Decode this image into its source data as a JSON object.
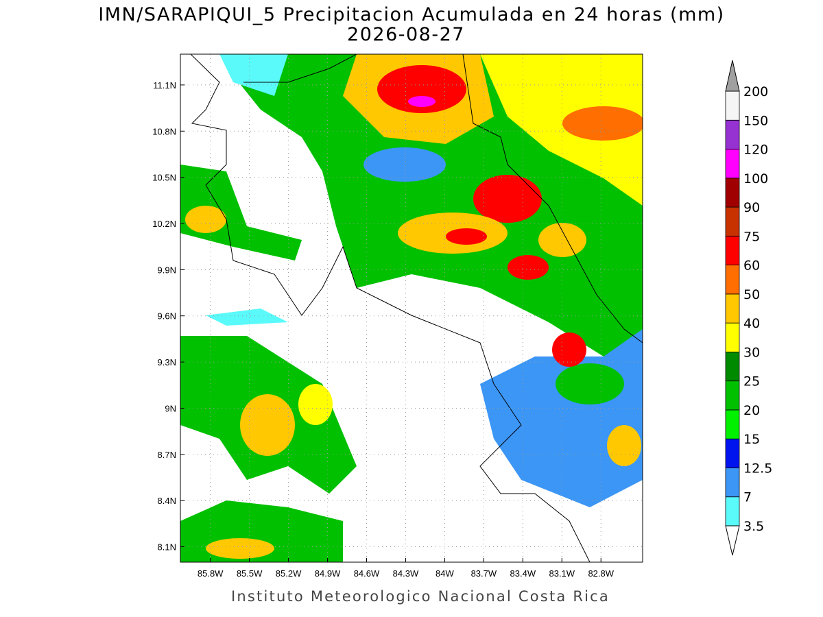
{
  "chart_data": {
    "type": "map",
    "title": "IMN/SARAPIQUI_5 Precipitacion Acumulada en 24 horas (mm)",
    "subtitle": "2026-08-27",
    "footer": "Instituto Meteorologico Nacional Costa Rica",
    "ylim": [
      8.0,
      11.3
    ],
    "xlim": [
      86.03,
      82.48
    ],
    "grid": true,
    "yticks": [
      {
        "value": 11.1,
        "label": "11.1N"
      },
      {
        "value": 10.8,
        "label": "10.8N"
      },
      {
        "value": 10.5,
        "label": "10.5N"
      },
      {
        "value": 10.2,
        "label": "10.2N"
      },
      {
        "value": 9.9,
        "label": "9.9N"
      },
      {
        "value": 9.6,
        "label": "9.6N"
      },
      {
        "value": 9.3,
        "label": "9.3N"
      },
      {
        "value": 9,
        "label": "9N"
      },
      {
        "value": 8.7,
        "label": "8.7N"
      },
      {
        "value": 8.4,
        "label": "8.4N"
      },
      {
        "value": 8.1,
        "label": "8.1N"
      }
    ],
    "xticks": [
      {
        "value": 85.8,
        "label": "85.8W"
      },
      {
        "value": 85.5,
        "label": "85.5W"
      },
      {
        "value": 85.2,
        "label": "85.2W"
      },
      {
        "value": 84.9,
        "label": "84.9W"
      },
      {
        "value": 84.6,
        "label": "84.6W"
      },
      {
        "value": 84.3,
        "label": "84.3W"
      },
      {
        "value": 84,
        "label": "84W"
      },
      {
        "value": 83.7,
        "label": "83.7W"
      },
      {
        "value": 83.4,
        "label": "83.4W"
      },
      {
        "value": 83.1,
        "label": "83.1W"
      },
      {
        "value": 82.8,
        "label": "82.8W"
      }
    ],
    "legend": {
      "levels": [
        3.5,
        7,
        12.5,
        15,
        20,
        25,
        30,
        40,
        50,
        60,
        75,
        90,
        100,
        120,
        150,
        200
      ],
      "colors": [
        "#5afafa",
        "#3c96f5",
        "#0014f0",
        "#00f000",
        "#00c000",
        "#008a00",
        "#ffff00",
        "#ffc800",
        "#ff6e00",
        "#ff0000",
        "#c83200",
        "#a00000",
        "#ff00ff",
        "#9632d2",
        "#f5f5f5"
      ],
      "under_color": "#ffffff",
      "over_color": "#a0a0a0"
    }
  }
}
